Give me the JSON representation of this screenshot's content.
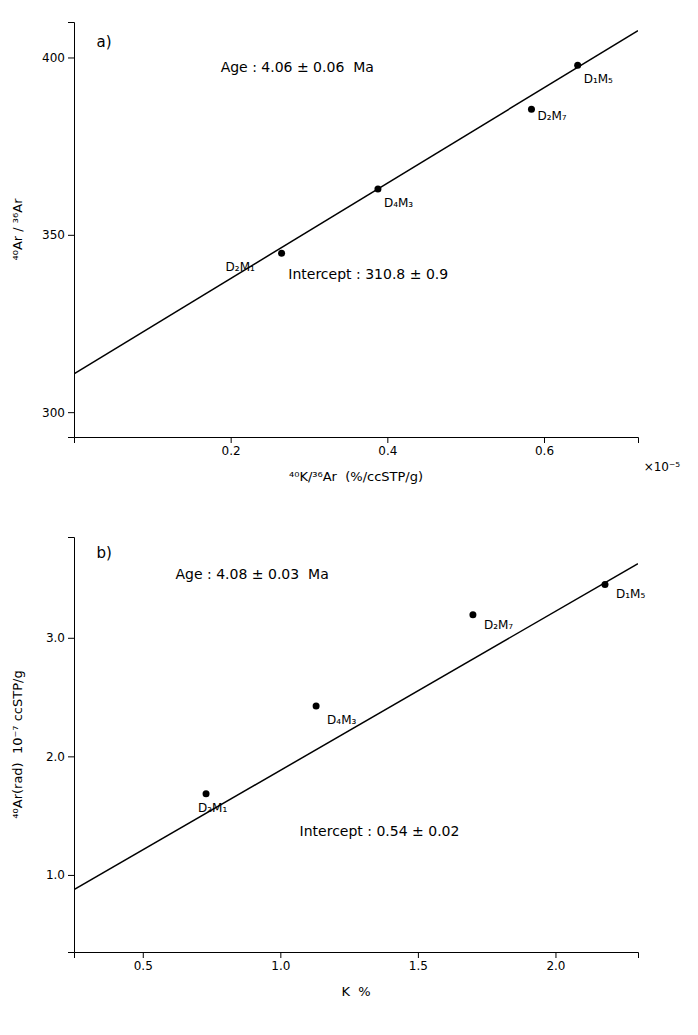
{
  "chart_data": [
    {
      "type": "scatter",
      "title": "a)",
      "x_label": "⁴⁰K/³⁶Ar  (%/ccSTP/g)",
      "y_label": "⁴⁰Ar / ³⁶Ar",
      "annotations": [
        "×10⁻⁵",
        "Age : 4.06 ± 0.06  Ma",
        "Intercept : 310.8 ± 0.9"
      ],
      "xlim": [
        0.0,
        7.2e-06
      ],
      "ylim": [
        293,
        410
      ],
      "xticks": [
        {
          "value": 2e-06,
          "label": "0.2"
        },
        {
          "value": 4e-06,
          "label": "0.4"
        },
        {
          "value": 6e-06,
          "label": "0.6"
        }
      ],
      "yticks": [
        300,
        350,
        400
      ],
      "series": [
        {
          "type": "line",
          "color": "black",
          "x": [
            0.0,
            7.2e-06
          ],
          "values": [
            310.8,
            407.568
          ]
        },
        {
          "type": "scatter",
          "color": "black",
          "x": [
            2.65e-06,
            3.88e-06,
            5.84e-06,
            6.43e-06
          ],
          "values": [
            344.8,
            362.9,
            385.4,
            397.8
          ],
          "labels": [
            "D₂M₁",
            "D₄M₃",
            "D₂M₇",
            "D₁M₅"
          ]
        }
      ]
    },
    {
      "type": "scatter",
      "title": "b)",
      "x_label": "K  %",
      "y_label": "⁴⁰Ar(rad)  10⁻⁷ ccSTP/g",
      "annotations": [
        "Age : 4.08 ± 0.03  Ma",
        "Intercept : 0.54 ± 0.02"
      ],
      "xlim": [
        0.25,
        2.3
      ],
      "ylim": [
        0.35,
        3.85
      ],
      "xticks": [
        0.5,
        {
          "value": 1.0,
          "label": "1.0"
        },
        1.5,
        {
          "value": 2.0,
          "label": "2.0"
        }
      ],
      "yticks": [
        {
          "value": 1.0,
          "label": "1.0"
        },
        {
          "value": 2.0,
          "label": "2.0"
        },
        {
          "value": 3.0,
          "label": "3.0"
        }
      ],
      "series": [
        {
          "type": "line",
          "color": "black",
          "x": [
            0.25,
            2.3
          ],
          "values": [
            0.875425,
            3.62591
          ]
        },
        {
          "type": "scatter",
          "color": "black",
          "x": [
            0.73,
            1.13,
            1.7,
            2.18
          ],
          "values": [
            1.685,
            2.425,
            3.195,
            3.45
          ],
          "labels": [
            "D₂M₁",
            "D₄M₃",
            "D₂M₇",
            "D₁M₅"
          ]
        }
      ]
    }
  ]
}
